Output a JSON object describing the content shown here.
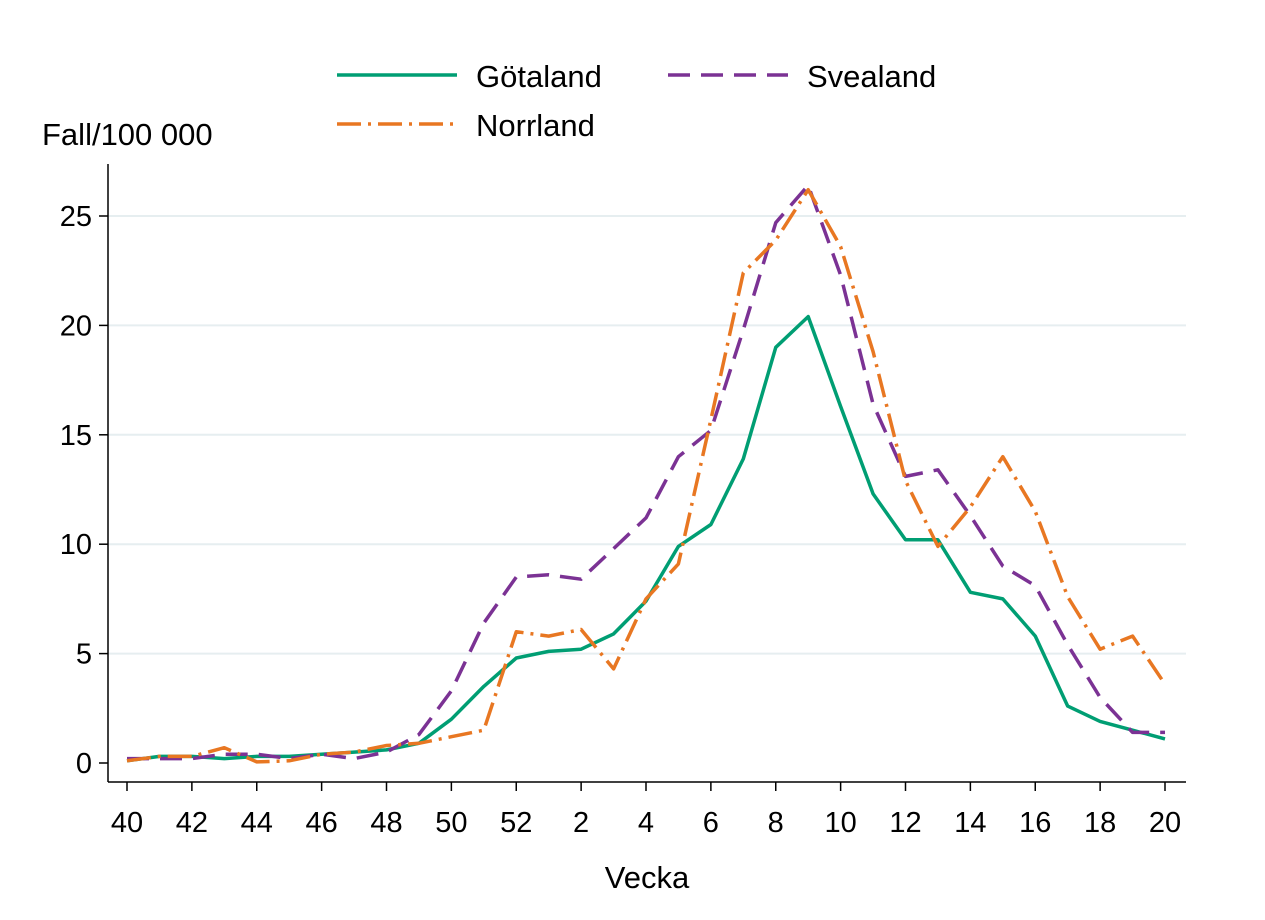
{
  "chart_data": {
    "type": "line",
    "xlabel": "Vecka",
    "ylabel": "Fall/100 000",
    "ylim": [
      0,
      26.5
    ],
    "yticks": [
      0,
      5,
      10,
      15,
      20,
      25
    ],
    "grid": true,
    "legend_position": "top",
    "x": [
      "40",
      "41",
      "42",
      "43",
      "44",
      "45",
      "46",
      "47",
      "48",
      "49",
      "50",
      "51",
      "52",
      "1",
      "2",
      "3",
      "4",
      "5",
      "6",
      "7",
      "8",
      "9",
      "10",
      "11",
      "12",
      "13",
      "14",
      "15",
      "16",
      "17",
      "18",
      "19",
      "20"
    ],
    "xtick_labels": [
      "40",
      "42",
      "44",
      "46",
      "48",
      "50",
      "52",
      "2",
      "4",
      "6",
      "8",
      "10",
      "12",
      "14",
      "16",
      "18",
      "20"
    ],
    "series": [
      {
        "name": "Götaland",
        "color": "#009E73",
        "dash": "solid",
        "values": [
          0.1,
          0.3,
          0.3,
          0.2,
          0.3,
          0.3,
          0.4,
          0.5,
          0.6,
          0.9,
          2.0,
          3.5,
          4.8,
          5.1,
          5.2,
          5.9,
          7.4,
          9.9,
          10.9,
          13.9,
          19.0,
          20.4,
          16.3,
          12.3,
          10.2,
          10.2,
          7.8,
          7.5,
          5.8,
          2.6,
          1.9,
          1.5,
          1.1
        ]
      },
      {
        "name": "Svealand",
        "color": "#7B3294",
        "dash": "dashed",
        "values": [
          0.2,
          0.2,
          0.2,
          0.4,
          0.4,
          0.2,
          0.4,
          0.2,
          0.5,
          1.3,
          3.3,
          6.4,
          8.5,
          8.6,
          8.4,
          9.8,
          11.2,
          14.0,
          15.2,
          19.8,
          24.7,
          26.4,
          22.3,
          16.4,
          13.1,
          13.4,
          11.3,
          9.0,
          8.1,
          5.4,
          3.0,
          1.4,
          1.4
        ]
      },
      {
        "name": "Norrland",
        "color": "#E87722",
        "dash": "dashdot",
        "values": [
          0.1,
          0.3,
          0.3,
          0.7,
          0.05,
          0.1,
          0.4,
          0.5,
          0.8,
          0.9,
          1.2,
          1.5,
          6.0,
          5.8,
          6.1,
          4.3,
          7.5,
          9.1,
          15.7,
          22.4,
          23.9,
          26.2,
          23.6,
          18.8,
          12.9,
          9.9,
          11.7,
          14.0,
          11.5,
          7.6,
          5.2,
          5.8,
          3.6
        ]
      }
    ]
  }
}
